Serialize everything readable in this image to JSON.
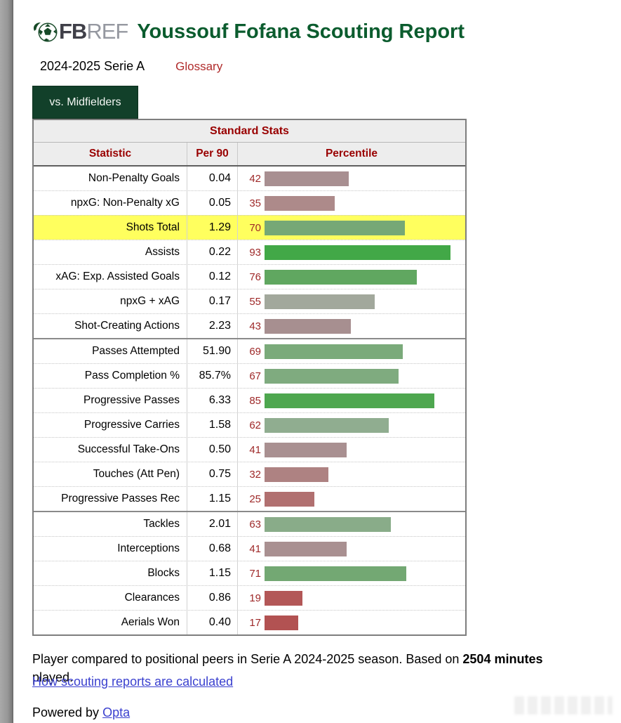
{
  "header": {
    "logo_fb": "FB",
    "logo_ref": "REF",
    "title": "Youssouf Fofana Scouting Report"
  },
  "subheader": {
    "season": "2024-2025 Serie A",
    "glossary_label": "Glossary"
  },
  "tab": {
    "label": "vs. Midfielders"
  },
  "table": {
    "title": "Standard Stats",
    "columns": [
      "Statistic",
      "Per 90",
      "Percentile"
    ],
    "rows": [
      {
        "stat": "Non-Penalty Goals",
        "per90": "0.04",
        "percentile": 42,
        "bar_color": "#a88f91"
      },
      {
        "stat": "npxG: Non-Penalty xG",
        "per90": "0.05",
        "percentile": 35,
        "bar_color": "#ad8a8a"
      },
      {
        "stat": "Shots Total",
        "per90": "1.29",
        "percentile": 70,
        "bar_color": "#76a876",
        "highlight": true
      },
      {
        "stat": "Assists",
        "per90": "0.22",
        "percentile": 93,
        "bar_color": "#42a847"
      },
      {
        "stat": "xAG: Exp. Assisted Goals",
        "per90": "0.12",
        "percentile": 76,
        "bar_color": "#60a760"
      },
      {
        "stat": "npxG + xAG",
        "per90": "0.17",
        "percentile": 55,
        "bar_color": "#a2a89c"
      },
      {
        "stat": "Shot-Creating Actions",
        "per90": "2.23",
        "percentile": 43,
        "bar_color": "#a78f90"
      },
      {
        "stat": "Passes Attempted",
        "per90": "51.90",
        "percentile": 69,
        "bar_color": "#7aaa7a",
        "group_start": true
      },
      {
        "stat": "Pass Completion %",
        "per90": "85.7%",
        "percentile": 67,
        "bar_color": "#7fab7f"
      },
      {
        "stat": "Progressive Passes",
        "per90": "6.33",
        "percentile": 85,
        "bar_color": "#4ea74f"
      },
      {
        "stat": "Progressive Carries",
        "per90": "1.58",
        "percentile": 62,
        "bar_color": "#90ad90"
      },
      {
        "stat": "Successful Take-Ons",
        "per90": "0.50",
        "percentile": 41,
        "bar_color": "#a99091"
      },
      {
        "stat": "Touches (Att Pen)",
        "per90": "0.75",
        "percentile": 32,
        "bar_color": "#ae8282"
      },
      {
        "stat": "Progressive Passes Rec",
        "per90": "1.15",
        "percentile": 25,
        "bar_color": "#b17070"
      },
      {
        "stat": "Tackles",
        "per90": "2.01",
        "percentile": 63,
        "bar_color": "#89ac89",
        "group_start": true
      },
      {
        "stat": "Interceptions",
        "per90": "0.68",
        "percentile": 41,
        "bar_color": "#a99091"
      },
      {
        "stat": "Blocks",
        "per90": "1.15",
        "percentile": 71,
        "bar_color": "#73a873"
      },
      {
        "stat": "Clearances",
        "per90": "0.86",
        "percentile": 19,
        "bar_color": "#b35757"
      },
      {
        "stat": "Aerials Won",
        "per90": "0.40",
        "percentile": 17,
        "bar_color": "#b25252"
      }
    ]
  },
  "footer": {
    "note_1": "Player compared to positional peers in Serie A 2024-2025 season. Based on ",
    "note_bold": "2504 minutes",
    "note_2": " played.",
    "calc_link": "How scouting reports are calculated",
    "powered_by": "Powered by ",
    "opta_link": "Opta"
  },
  "colors": {
    "brand_green": "#0b5c2e",
    "tab_bg": "#12402a",
    "table_header_red": "#990000",
    "glossary_red": "#b02b2b",
    "percentile_number_red": "#9e2828",
    "highlight_yellow": "#ffff5e",
    "link_blue": "#3b41cf",
    "bar_green_high": "#42a847",
    "bar_gray_mid": "#a2a89c",
    "bar_red_low": "#b25252"
  }
}
